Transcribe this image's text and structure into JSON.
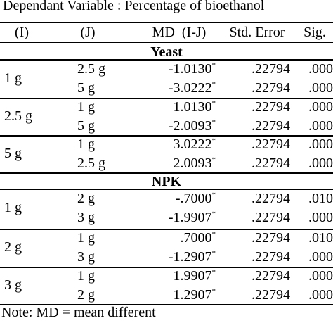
{
  "caption": "Dependant Variable : Percentage of bioethanol",
  "headers": {
    "i": "(I)",
    "j": "(J)",
    "md": "MD  (I-J)",
    "se": "Std. Error",
    "sig": "Sig."
  },
  "sections": [
    {
      "title": "Yeast",
      "groups": [
        {
          "i": "1 g",
          "rows": [
            {
              "j": "2.5 g",
              "md": "-1.0130",
              "star": "*",
              "se": ".22794",
              "sig": ".000"
            },
            {
              "j": "5 g",
              "md": "-3.0222",
              "star": "*",
              "se": ".22794",
              "sig": ".000"
            }
          ]
        },
        {
          "i": "2.5 g",
          "rows": [
            {
              "j": "1 g",
              "md": "1.0130",
              "star": "*",
              "se": ".22794",
              "sig": ".000"
            },
            {
              "j": "5 g",
              "md": "-2.0093",
              "star": "*",
              "se": ".22794",
              "sig": ".000"
            }
          ]
        },
        {
          "i": "5 g",
          "rows": [
            {
              "j": "1 g",
              "md": "3.0222",
              "star": "*",
              "se": ".22794",
              "sig": ".000"
            },
            {
              "j": "2.5 g",
              "md": "2.0093",
              "star": "*",
              "se": ".22794",
              "sig": ".000"
            }
          ]
        }
      ]
    },
    {
      "title": "NPK",
      "groups": [
        {
          "i": "1 g",
          "rows": [
            {
              "j": "2 g",
              "md": "-.7000",
              "star": "*",
              "se": ".22794",
              "sig": ".010"
            },
            {
              "j": "3 g",
              "md": "-1.9907",
              "star": "*",
              "se": ".22794",
              "sig": ".000"
            }
          ]
        },
        {
          "i": "2 g",
          "rows": [
            {
              "j": "1 g",
              "md": ".7000",
              "star": "*",
              "se": ".22794",
              "sig": ".010"
            },
            {
              "j": "3 g",
              "md": "-1.2907",
              "star": "*",
              "se": ".22794",
              "sig": ".000"
            }
          ]
        },
        {
          "i": "3 g",
          "rows": [
            {
              "j": "1 g",
              "md": "1.9907",
              "star": "*",
              "se": ".22794",
              "sig": ".000"
            },
            {
              "j": "2 g",
              "md": "1.2907",
              "star": "*",
              "se": ".22794",
              "sig": ".000"
            }
          ]
        }
      ]
    }
  ],
  "note": "Note: MD = mean different"
}
